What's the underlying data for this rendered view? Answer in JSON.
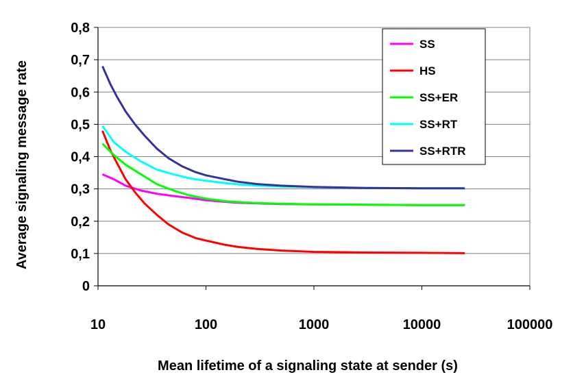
{
  "chart_data": {
    "type": "line",
    "xlabel": "Mean lifetime of a signaling state at sender (s)",
    "ylabel": "Average signaling message rate",
    "x_scale": "log",
    "xlim": [
      10,
      100000
    ],
    "ylim": [
      0,
      0.8
    ],
    "grid": "horizontal",
    "legend_position": "top-right",
    "x_ticks": [
      {
        "value": 10,
        "label": "10"
      },
      {
        "value": 100,
        "label": "100"
      },
      {
        "value": 1000,
        "label": "1000"
      },
      {
        "value": 10000,
        "label": "10000"
      },
      {
        "value": 100000,
        "label": "100000"
      }
    ],
    "y_ticks": [
      {
        "value": 0,
        "label": "0"
      },
      {
        "value": 0.1,
        "label": "0,1"
      },
      {
        "value": 0.2,
        "label": "0,2"
      },
      {
        "value": 0.3,
        "label": "0,3"
      },
      {
        "value": 0.4,
        "label": "0,4"
      },
      {
        "value": 0.5,
        "label": "0,5"
      },
      {
        "value": 0.6,
        "label": "0,6"
      },
      {
        "value": 0.7,
        "label": "0,7"
      },
      {
        "value": 0.8,
        "label": "0,8"
      }
    ],
    "series": [
      {
        "name": "SS",
        "color": "#ff00ff",
        "points": [
          [
            11,
            0.345
          ],
          [
            14,
            0.33
          ],
          [
            18,
            0.31
          ],
          [
            25,
            0.295
          ],
          [
            35,
            0.285
          ],
          [
            50,
            0.278
          ],
          [
            70,
            0.272
          ],
          [
            100,
            0.265
          ],
          [
            150,
            0.26
          ],
          [
            200,
            0.257
          ],
          [
            300,
            0.255
          ],
          [
            500,
            0.253
          ],
          [
            1000,
            0.252
          ],
          [
            3000,
            0.251
          ],
          [
            10000,
            0.25
          ],
          [
            25000,
            0.25
          ]
        ]
      },
      {
        "name": "HS",
        "color": "#ff0000",
        "points": [
          [
            11,
            0.48
          ],
          [
            13,
            0.42
          ],
          [
            15,
            0.38
          ],
          [
            18,
            0.33
          ],
          [
            22,
            0.29
          ],
          [
            27,
            0.255
          ],
          [
            35,
            0.22
          ],
          [
            45,
            0.19
          ],
          [
            60,
            0.165
          ],
          [
            80,
            0.148
          ],
          [
            100,
            0.14
          ],
          [
            150,
            0.127
          ],
          [
            200,
            0.12
          ],
          [
            300,
            0.114
          ],
          [
            500,
            0.109
          ],
          [
            1000,
            0.105
          ],
          [
            3000,
            0.103
          ],
          [
            10000,
            0.102
          ],
          [
            25000,
            0.101
          ]
        ]
      },
      {
        "name": "SS+ER",
        "color": "#00ff00",
        "points": [
          [
            11,
            0.44
          ],
          [
            14,
            0.405
          ],
          [
            18,
            0.375
          ],
          [
            25,
            0.345
          ],
          [
            35,
            0.315
          ],
          [
            50,
            0.295
          ],
          [
            70,
            0.28
          ],
          [
            100,
            0.27
          ],
          [
            150,
            0.262
          ],
          [
            200,
            0.259
          ],
          [
            300,
            0.256
          ],
          [
            500,
            0.254
          ],
          [
            1000,
            0.252
          ],
          [
            3000,
            0.251
          ],
          [
            10000,
            0.25
          ],
          [
            25000,
            0.25
          ]
        ]
      },
      {
        "name": "SS+RT",
        "color": "#00ffff",
        "points": [
          [
            11,
            0.495
          ],
          [
            14,
            0.445
          ],
          [
            18,
            0.415
          ],
          [
            25,
            0.385
          ],
          [
            35,
            0.36
          ],
          [
            50,
            0.345
          ],
          [
            70,
            0.333
          ],
          [
            100,
            0.325
          ],
          [
            150,
            0.318
          ],
          [
            200,
            0.314
          ],
          [
            300,
            0.31
          ],
          [
            500,
            0.307
          ],
          [
            1000,
            0.305
          ],
          [
            3000,
            0.303
          ],
          [
            10000,
            0.302
          ],
          [
            25000,
            0.302
          ]
        ]
      },
      {
        "name": "SS+RTR",
        "color": "#333399",
        "points": [
          [
            11,
            0.68
          ],
          [
            13,
            0.625
          ],
          [
            15,
            0.585
          ],
          [
            18,
            0.54
          ],
          [
            22,
            0.5
          ],
          [
            27,
            0.465
          ],
          [
            35,
            0.425
          ],
          [
            45,
            0.395
          ],
          [
            60,
            0.37
          ],
          [
            80,
            0.352
          ],
          [
            100,
            0.342
          ],
          [
            150,
            0.33
          ],
          [
            200,
            0.322
          ],
          [
            300,
            0.315
          ],
          [
            500,
            0.31
          ],
          [
            1000,
            0.306
          ],
          [
            3000,
            0.303
          ],
          [
            10000,
            0.302
          ],
          [
            25000,
            0.302
          ]
        ]
      }
    ]
  }
}
